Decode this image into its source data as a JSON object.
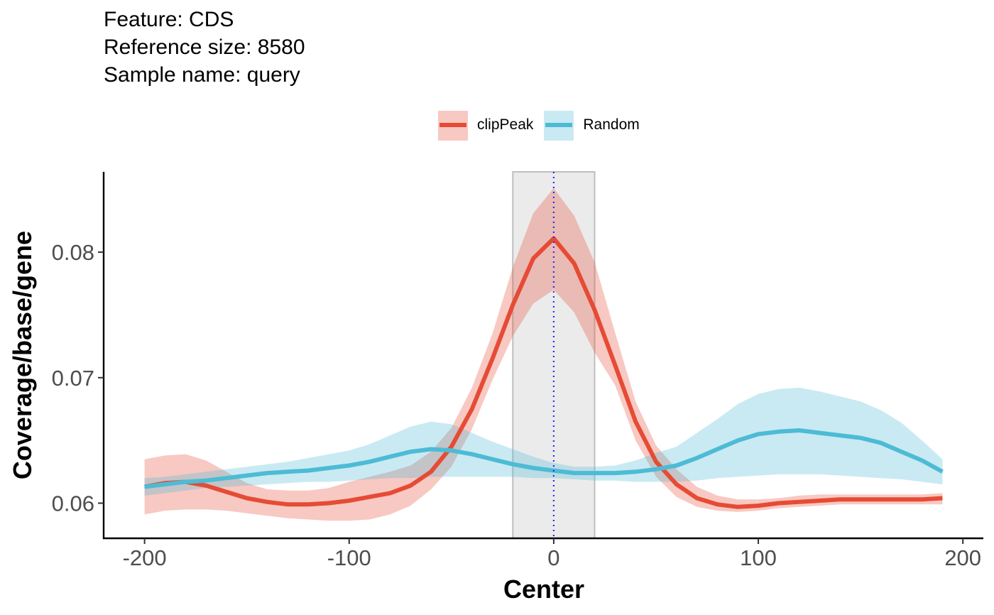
{
  "title_lines": [
    "Feature: CDS",
    "Reference size: 8580",
    "Sample name: query"
  ],
  "colors": {
    "clipPeak": "#E64B35",
    "Random": "#4DBBD5",
    "region": "#ebebeb",
    "region_border": "#bfbfbf",
    "centerline": "#2b2bff"
  },
  "chart_data": {
    "type": "line",
    "title": "",
    "xlabel": "Center",
    "ylabel": "Coverage/base/gene",
    "xlim": [
      -220,
      210
    ],
    "ylim": [
      0.0572,
      0.0864
    ],
    "xticks": [
      -200,
      -100,
      0,
      100,
      200
    ],
    "xtick_labels": [
      "-200",
      "-100",
      "0",
      "100",
      "200"
    ],
    "yticks": [
      0.06,
      0.07,
      0.08
    ],
    "ytick_labels": [
      "0.06",
      "0.07",
      "0.08"
    ],
    "grid": false,
    "legend_position": "top",
    "highlight_region": [
      -20,
      20
    ],
    "center_line": 0,
    "series": [
      {
        "name": "clipPeak",
        "color_key": "clipPeak",
        "x": [
          -200,
          -190,
          -180,
          -170,
          -160,
          -150,
          -140,
          -130,
          -120,
          -110,
          -100,
          -90,
          -80,
          -70,
          -60,
          -50,
          -40,
          -30,
          -20,
          -10,
          0,
          10,
          20,
          30,
          40,
          50,
          60,
          70,
          80,
          90,
          100,
          110,
          120,
          130,
          140,
          150,
          160,
          170,
          180,
          190
        ],
        "y": [
          0.0613,
          0.0616,
          0.0617,
          0.0614,
          0.0609,
          0.0604,
          0.0601,
          0.0599,
          0.0599,
          0.06,
          0.0602,
          0.0605,
          0.0608,
          0.0614,
          0.0625,
          0.0645,
          0.0675,
          0.0715,
          0.0758,
          0.0795,
          0.0811,
          0.0791,
          0.0754,
          0.071,
          0.0665,
          0.0633,
          0.0615,
          0.0604,
          0.0599,
          0.0597,
          0.0598,
          0.06,
          0.0601,
          0.0602,
          0.0603,
          0.0603,
          0.0603,
          0.0603,
          0.0603,
          0.0604
        ],
        "lower": [
          0.0591,
          0.0594,
          0.0595,
          0.0595,
          0.0594,
          0.0592,
          0.059,
          0.0588,
          0.0587,
          0.0586,
          0.0586,
          0.0587,
          0.0591,
          0.0598,
          0.0611,
          0.0629,
          0.0659,
          0.0698,
          0.0733,
          0.0759,
          0.077,
          0.0752,
          0.072,
          0.0694,
          0.065,
          0.0621,
          0.0605,
          0.0597,
          0.0594,
          0.0593,
          0.0594,
          0.0596,
          0.0597,
          0.0598,
          0.0599,
          0.0599,
          0.0599,
          0.0599,
          0.0599,
          0.0599
        ],
        "upper": [
          0.0635,
          0.0638,
          0.0639,
          0.0634,
          0.0625,
          0.0616,
          0.0611,
          0.061,
          0.061,
          0.0612,
          0.0617,
          0.0621,
          0.0625,
          0.063,
          0.0641,
          0.066,
          0.0692,
          0.0735,
          0.0788,
          0.0831,
          0.0851,
          0.0829,
          0.0792,
          0.0736,
          0.0681,
          0.0646,
          0.0627,
          0.0613,
          0.0606,
          0.0603,
          0.0603,
          0.0604,
          0.0606,
          0.0607,
          0.0607,
          0.0607,
          0.0607,
          0.0607,
          0.0607,
          0.0608
        ]
      },
      {
        "name": "Random",
        "color_key": "Random",
        "x": [
          -200,
          -190,
          -180,
          -170,
          -160,
          -150,
          -140,
          -130,
          -120,
          -110,
          -100,
          -90,
          -80,
          -70,
          -60,
          -50,
          -40,
          -30,
          -20,
          -10,
          0,
          10,
          20,
          30,
          40,
          50,
          60,
          70,
          80,
          90,
          100,
          110,
          120,
          130,
          140,
          150,
          160,
          170,
          180,
          190
        ],
        "y": [
          0.0613,
          0.0615,
          0.0617,
          0.0618,
          0.062,
          0.0622,
          0.0624,
          0.0625,
          0.0626,
          0.0628,
          0.063,
          0.0633,
          0.0637,
          0.0641,
          0.0643,
          0.0642,
          0.0639,
          0.0635,
          0.0631,
          0.0628,
          0.0626,
          0.0624,
          0.0624,
          0.0624,
          0.0625,
          0.0627,
          0.063,
          0.0636,
          0.0643,
          0.065,
          0.0655,
          0.0657,
          0.0658,
          0.0656,
          0.0654,
          0.0652,
          0.0648,
          0.0641,
          0.0634,
          0.0625
        ],
        "lower": [
          0.0606,
          0.0608,
          0.061,
          0.0612,
          0.0613,
          0.0614,
          0.0615,
          0.0616,
          0.0617,
          0.0617,
          0.0618,
          0.0619,
          0.062,
          0.062,
          0.0621,
          0.0621,
          0.0621,
          0.0621,
          0.0621,
          0.062,
          0.062,
          0.0619,
          0.0618,
          0.0618,
          0.0617,
          0.0617,
          0.0617,
          0.0618,
          0.062,
          0.0621,
          0.0622,
          0.0623,
          0.0623,
          0.0623,
          0.0622,
          0.0621,
          0.062,
          0.0619,
          0.0617,
          0.0615
        ],
        "upper": [
          0.062,
          0.0621,
          0.0623,
          0.0625,
          0.0627,
          0.0629,
          0.0631,
          0.0633,
          0.0636,
          0.0639,
          0.0642,
          0.0647,
          0.0654,
          0.0661,
          0.0665,
          0.0663,
          0.0656,
          0.0649,
          0.0643,
          0.0637,
          0.0632,
          0.0629,
          0.0629,
          0.063,
          0.0634,
          0.064,
          0.0645,
          0.0656,
          0.0667,
          0.0679,
          0.0687,
          0.0691,
          0.0692,
          0.0689,
          0.0685,
          0.0681,
          0.0674,
          0.0664,
          0.065,
          0.0635
        ]
      }
    ]
  }
}
